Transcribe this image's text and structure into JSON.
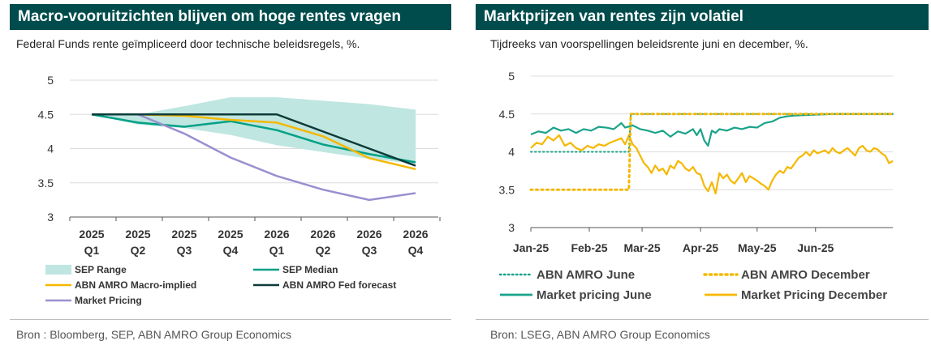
{
  "left": {
    "title": "Macro-vooruitzichten blijven om hoge rentes vragen",
    "subtitle": "Federal Funds rente geïmpliceerd door technische beleidsregels, %.",
    "source": "Bron : Bloomberg, SEP, ABN AMRO Group Economics"
  },
  "right": {
    "title": "Marktprijzen van rentes zijn volatiel",
    "subtitle": "Tijdreeks van voorspellingen beleidsrente juni en december, %.",
    "source": "Bron: LSEG, ABN AMRO Group Economics"
  },
  "colors": {
    "sep_range": "#bfe6e0",
    "sep_median": "#00a087",
    "abn_macro": "#f5b800",
    "abn_fed": "#0d3b3a",
    "market_pricing": "#9b8fcf",
    "abn_june": "#1aa38a",
    "abn_december": "#f5b800",
    "market_june": "#1aa38a",
    "market_december": "#f5b800",
    "grid": "#dcdcdc"
  },
  "chart_data": [
    {
      "type": "line",
      "title": "Macro-vooruitzichten blijven om hoge rentes vragen",
      "categories": [
        "2025\nQ1",
        "2025\nQ2",
        "2025\nQ3",
        "2025\nQ4",
        "2026\nQ1",
        "2026\nQ2",
        "2026\nQ3",
        "2026\nQ4"
      ],
      "category_lines": [
        [
          "2025",
          "Q1"
        ],
        [
          "2025",
          "Q2"
        ],
        [
          "2025",
          "Q3"
        ],
        [
          "2025",
          "Q4"
        ],
        [
          "2026",
          "Q1"
        ],
        [
          "2026",
          "Q2"
        ],
        [
          "2026",
          "Q3"
        ],
        [
          "2026",
          "Q4"
        ]
      ],
      "ylim": [
        3,
        5
      ],
      "yticks": [
        "3",
        "3.5",
        "4",
        "4.5",
        "5"
      ],
      "ytick_values": [
        3,
        3.5,
        4,
        4.5,
        5
      ],
      "grid": true,
      "legend_position": "bottom",
      "range": {
        "name": "SEP Range",
        "low": [
          4.5,
          4.35,
          4.3,
          4.2,
          4.05,
          3.95,
          3.85,
          3.78
        ],
        "high": [
          4.5,
          4.5,
          4.62,
          4.75,
          4.75,
          4.7,
          4.65,
          4.57
        ]
      },
      "series": [
        {
          "name": "SEP Median",
          "values": [
            4.5,
            4.38,
            4.32,
            4.4,
            4.27,
            4.06,
            3.92,
            3.8
          ]
        },
        {
          "name": "ABN AMRO Macro-implied",
          "values": [
            4.5,
            4.5,
            4.48,
            4.42,
            4.38,
            4.18,
            3.86,
            3.7
          ]
        },
        {
          "name": "ABN AMRO Fed forecast",
          "values": [
            4.5,
            4.5,
            4.5,
            4.5,
            4.5,
            4.25,
            4.0,
            3.75
          ]
        },
        {
          "name": "Market Pricing",
          "values": [
            4.5,
            4.5,
            4.22,
            3.87,
            3.6,
            3.4,
            3.25,
            3.35
          ]
        }
      ],
      "legend": [
        "SEP Range",
        "SEP Median",
        "ABN AMRO Macro-implied",
        "ABN AMRO Fed forecast",
        "Market Pricing"
      ]
    },
    {
      "type": "line",
      "title": "Marktprijzen van rentes zijn volatiel",
      "xticks": [
        "Jan-25",
        "Feb-25",
        "Mar-25",
        "Apr-25",
        "May-25",
        "Jun-25"
      ],
      "xtick_values": [
        0,
        31,
        59,
        90,
        120,
        151
      ],
      "x_unit": "days from 2025-01-01",
      "xlim": [
        0,
        192
      ],
      "ylim": [
        3,
        5
      ],
      "yticks": [
        "3",
        "3.5",
        "4",
        "4.5",
        "5"
      ],
      "ytick_values": [
        3,
        3.5,
        4,
        4.5,
        5
      ],
      "grid": true,
      "legend_position": "bottom",
      "series": [
        {
          "name": "ABN AMRO June",
          "style": "dotted",
          "x": [
            0,
            52,
            53,
            192
          ],
          "y": [
            4.0,
            4.0,
            4.5,
            4.5
          ]
        },
        {
          "name": "ABN AMRO December",
          "style": "dotted",
          "x": [
            0,
            52,
            53,
            192
          ],
          "y": [
            3.5,
            3.5,
            4.5,
            4.5
          ]
        },
        {
          "name": "Market pricing June",
          "style": "solid",
          "x": [
            0,
            4,
            8,
            12,
            16,
            20,
            24,
            28,
            32,
            36,
            40,
            44,
            48,
            50,
            54,
            58,
            62,
            66,
            70,
            74,
            78,
            82,
            86,
            88,
            90,
            92,
            94,
            96,
            98,
            100,
            104,
            108,
            112,
            116,
            120,
            124,
            128,
            132,
            136,
            140,
            150,
            160,
            170,
            180,
            192
          ],
          "y": [
            4.23,
            4.27,
            4.25,
            4.32,
            4.28,
            4.3,
            4.25,
            4.3,
            4.28,
            4.33,
            4.32,
            4.3,
            4.38,
            4.32,
            4.35,
            4.3,
            4.28,
            4.25,
            4.28,
            4.2,
            4.27,
            4.24,
            4.3,
            4.22,
            4.3,
            4.15,
            4.08,
            4.28,
            4.25,
            4.3,
            4.28,
            4.32,
            4.3,
            4.33,
            4.32,
            4.38,
            4.4,
            4.45,
            4.47,
            4.48,
            4.49,
            4.5,
            4.5,
            4.5,
            4.5
          ]
        },
        {
          "name": "Market Pricing December",
          "style": "solid",
          "x": [
            0,
            3,
            6,
            9,
            12,
            15,
            18,
            21,
            24,
            27,
            30,
            33,
            36,
            39,
            42,
            45,
            48,
            50,
            52,
            54,
            56,
            58,
            60,
            62,
            64,
            66,
            68,
            70,
            72,
            74,
            76,
            78,
            80,
            82,
            84,
            86,
            88,
            90,
            92,
            94,
            96,
            98,
            100,
            102,
            104,
            106,
            108,
            110,
            112,
            114,
            116,
            118,
            120,
            122,
            124,
            126,
            128,
            130,
            132,
            134,
            136,
            138,
            140,
            142,
            144,
            146,
            148,
            150,
            152,
            154,
            156,
            158,
            160,
            162,
            164,
            166,
            168,
            170,
            172,
            174,
            176,
            178,
            180,
            182,
            184,
            186,
            188,
            190,
            192
          ],
          "y": [
            4.05,
            4.12,
            4.1,
            4.2,
            4.15,
            4.22,
            4.08,
            4.12,
            4.05,
            4.02,
            4.08,
            4.05,
            4.1,
            4.08,
            4.12,
            4.15,
            4.18,
            4.1,
            4.22,
            4.1,
            4.05,
            3.95,
            3.85,
            3.8,
            3.72,
            3.82,
            3.75,
            3.78,
            3.7,
            3.82,
            3.78,
            3.88,
            3.85,
            3.78,
            3.75,
            3.8,
            3.72,
            3.7,
            3.55,
            3.48,
            3.6,
            3.45,
            3.72,
            3.65,
            3.7,
            3.62,
            3.58,
            3.65,
            3.72,
            3.6,
            3.68,
            3.65,
            3.62,
            3.58,
            3.55,
            3.5,
            3.62,
            3.7,
            3.75,
            3.72,
            3.8,
            3.78,
            3.85,
            3.92,
            3.95,
            4.0,
            3.95,
            4.02,
            3.98,
            4.0,
            4.02,
            3.98,
            4.05,
            4.0,
            3.98,
            4.02,
            4.05,
            4.0,
            3.95,
            4.05,
            4.08,
            4.02,
            4.0,
            4.05,
            4.03,
            3.98,
            3.95,
            3.85,
            3.88
          ]
        }
      ],
      "legend": [
        "ABN AMRO June",
        "ABN AMRO December",
        "Market pricing June",
        "Market Pricing December"
      ]
    }
  ]
}
